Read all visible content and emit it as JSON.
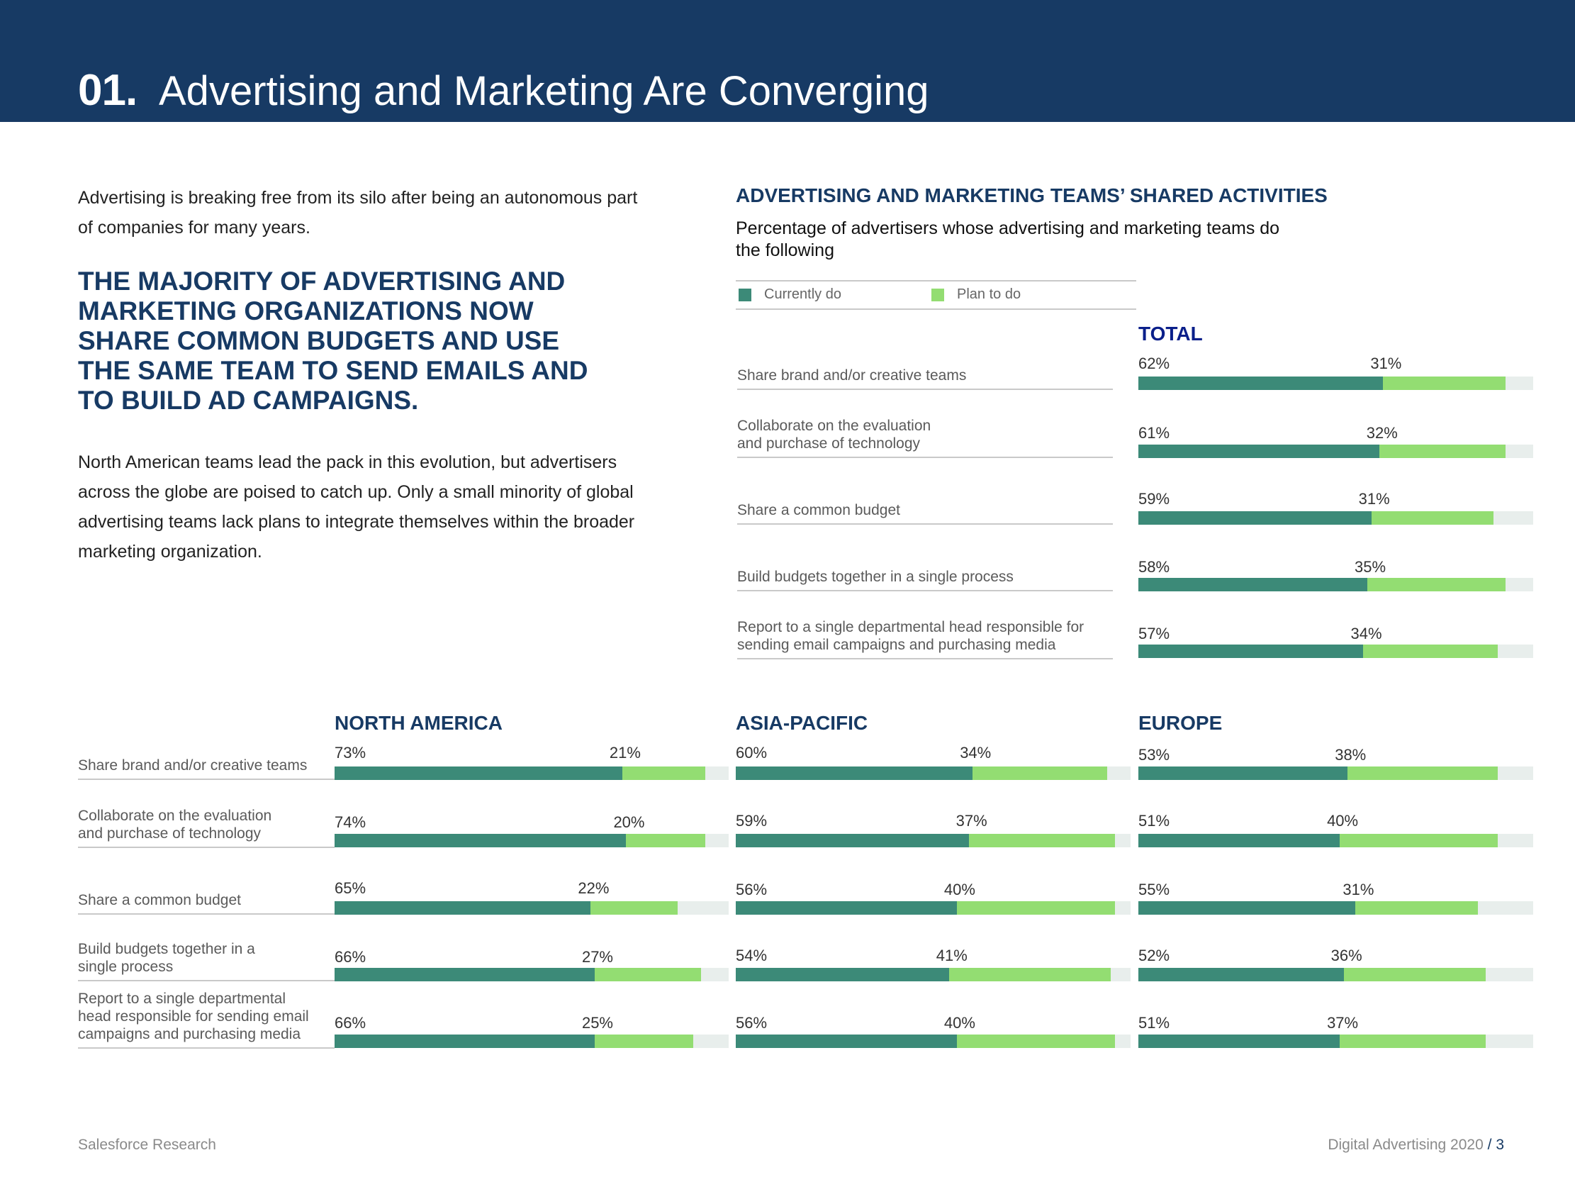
{
  "header": {
    "number": "01.",
    "title": "Advertising and Marketing Are Converging"
  },
  "intro": "Advertising is breaking free from its silo after being an autonomous part of companies for many years.",
  "headline": "The majority of advertising and marketing organizations now share common budgets and use the same team to send emails and to build ad campaigns.",
  "body": "North American teams lead the pack in this evolution, but advertisers across the globe are poised to catch up. Only a small minority of global advertising teams lack plans to integrate themselves within the broader marketing organization.",
  "chart_header": {
    "title": "ADVERTISING AND MARKETING TEAMS’ SHARED ACTIVITIES",
    "subtitle": "Percentage of advertisers whose advertising and marketing teams do the following"
  },
  "legend": {
    "current": "Currently do",
    "plan": "Plan to do"
  },
  "colors": {
    "header_bg": "#173a64",
    "current": "#3c8a78",
    "plan": "#93dd72",
    "track": "#e8eeec",
    "total_title": "#0a1f8a"
  },
  "top_labels": [
    [
      "Share brand and/or creative teams"
    ],
    [
      "Collaborate on the evaluation",
      "and purchase of technology"
    ],
    [
      "Share a common budget"
    ],
    [
      "Build budgets together in a single process"
    ],
    [
      "Report to a single departmental head responsible for",
      "sending email campaigns and purchasing media"
    ]
  ],
  "bottom_labels": [
    [
      "Share brand and/or creative teams"
    ],
    [
      "Collaborate on the evaluation",
      "and purchase of technology"
    ],
    [
      "Share a common budget"
    ],
    [
      "Build budgets together in a",
      "single process"
    ],
    [
      "Report to a single departmental",
      "head responsible for sending email",
      "campaigns and purchasing media"
    ]
  ],
  "chart_data": [
    {
      "type": "bar",
      "orientation": "horizontal",
      "stacked": true,
      "title": "TOTAL",
      "categories": [
        "Share brand and/or creative teams",
        "Collaborate on the evaluation and purchase of technology",
        "Share a common budget",
        "Build budgets together in a single process",
        "Report to a single departmental head responsible for sending email campaigns and purchasing media"
      ],
      "series": [
        {
          "name": "Currently do",
          "values": [
            62,
            61,
            59,
            58,
            57
          ]
        },
        {
          "name": "Plan to do",
          "values": [
            31,
            32,
            31,
            35,
            34
          ]
        }
      ],
      "xlim": [
        0,
        100
      ]
    },
    {
      "type": "bar",
      "orientation": "horizontal",
      "stacked": true,
      "title": "NORTH AMERICA",
      "categories": [
        "Share brand and/or creative teams",
        "Collaborate on the evaluation and purchase of technology",
        "Share a common budget",
        "Build budgets together in a single process",
        "Report to a single departmental head responsible for sending email campaigns and purchasing media"
      ],
      "series": [
        {
          "name": "Currently do",
          "values": [
            73,
            74,
            65,
            66,
            66
          ]
        },
        {
          "name": "Plan to do",
          "values": [
            21,
            20,
            22,
            27,
            25
          ]
        }
      ],
      "xlim": [
        0,
        100
      ]
    },
    {
      "type": "bar",
      "orientation": "horizontal",
      "stacked": true,
      "title": "ASIA-PACIFIC",
      "categories": [
        "Share brand and/or creative teams",
        "Collaborate on the evaluation and purchase of technology",
        "Share a common budget",
        "Build budgets together in a single process",
        "Report to a single departmental head responsible for sending email campaigns and purchasing media"
      ],
      "series": [
        {
          "name": "Currently do",
          "values": [
            60,
            59,
            56,
            54,
            56
          ]
        },
        {
          "name": "Plan to do",
          "values": [
            34,
            37,
            40,
            41,
            40
          ]
        }
      ],
      "xlim": [
        0,
        100
      ]
    },
    {
      "type": "bar",
      "orientation": "horizontal",
      "stacked": true,
      "title": "EUROPE",
      "categories": [
        "Share brand and/or creative teams",
        "Collaborate on the evaluation and purchase of technology",
        "Share a common budget",
        "Build budgets together in a single process",
        "Report to a single departmental head responsible for sending email campaigns and purchasing media"
      ],
      "series": [
        {
          "name": "Currently do",
          "values": [
            53,
            51,
            55,
            52,
            51
          ]
        },
        {
          "name": "Plan to do",
          "values": [
            38,
            40,
            31,
            36,
            37
          ]
        }
      ],
      "xlim": [
        0,
        100
      ]
    }
  ],
  "footer": {
    "left": "Salesforce Research",
    "right": "Digital Advertising 2020",
    "separator": "/",
    "page": "3"
  }
}
